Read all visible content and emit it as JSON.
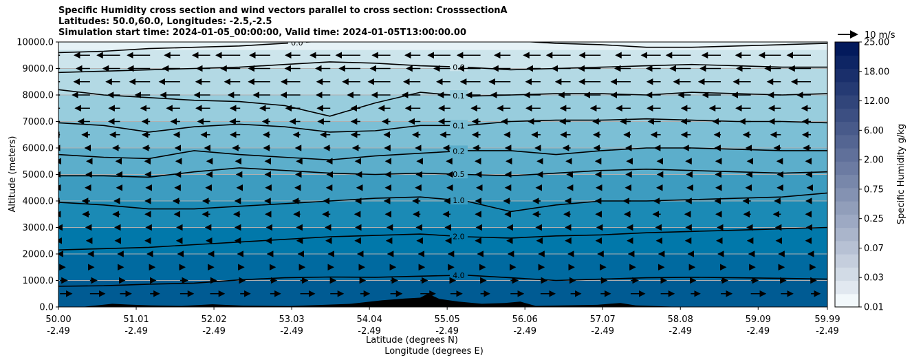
{
  "chart_data": {
    "type": "heatmap",
    "title_lines": [
      "Specific Humidity cross section and wind vectors parallel to cross section: CrosssectionA",
      "Latitudes: 50.0,60.0, Longitudes: -2.5,-2.5",
      "Simulation start time: 2024-01-05_00:00:00, Valid time: 2024-01-05T13:00:00.00"
    ],
    "ylabel": "Altitude (meters)",
    "xlabel_lat": "Latitude (degrees N)",
    "xlabel_lon": "Longitude (degrees E)",
    "ylim": [
      0,
      10000
    ],
    "y_ticks": [
      "0.0",
      "1000.0",
      "2000.0",
      "3000.0",
      "4000.0",
      "5000.0",
      "6000.0",
      "7000.0",
      "8000.0",
      "9000.0",
      "10000.0"
    ],
    "y_tick_values": [
      0,
      1000,
      2000,
      3000,
      4000,
      5000,
      6000,
      7000,
      8000,
      9000,
      10000
    ],
    "x_ticks_lat": [
      "50.00",
      "51.01",
      "52.02",
      "53.03",
      "54.04",
      "55.05",
      "56.06",
      "57.07",
      "58.08",
      "59.09",
      "59.99"
    ],
    "x_ticks_lon": [
      "-2.49",
      "-2.49",
      "-2.49",
      "-2.49",
      "-2.49",
      "-2.49",
      "-2.49",
      "-2.49",
      "-2.49",
      "-2.49",
      "-2.49"
    ],
    "x_tick_values": [
      50.0,
      51.01,
      52.02,
      53.03,
      54.04,
      55.05,
      56.06,
      57.07,
      58.08,
      59.09,
      59.99
    ],
    "xlim": [
      50.0,
      59.99
    ],
    "colorbar": {
      "label": "Specific Humidity g/kg",
      "ticks": [
        "0.01",
        "0.03",
        "0.07",
        "0.25",
        "0.75",
        "2.00",
        "6.00",
        "12.00",
        "18.00",
        "25.00"
      ],
      "levels": 20,
      "color_low": "#f2f8fb",
      "color_high": "#031a5c"
    },
    "humidity_bands": [
      {
        "alt": 0,
        "color": "#005b93"
      },
      {
        "alt": 1000,
        "color": "#006aa0"
      },
      {
        "alt": 2000,
        "color": "#0178aa"
      },
      {
        "alt": 3000,
        "color": "#1b8ab5"
      },
      {
        "alt": 4000,
        "color": "#3d9cc0"
      },
      {
        "alt": 5000,
        "color": "#5caecb"
      },
      {
        "alt": 6000,
        "color": "#7cbfd5"
      },
      {
        "alt": 7000,
        "color": "#98cddd"
      },
      {
        "alt": 8000,
        "color": "#b3d9e4"
      },
      {
        "alt": 9000,
        "color": "#cde5ec"
      },
      {
        "alt": 9700,
        "color": "#e6f2f6"
      }
    ],
    "contours": [
      {
        "label": "4.0",
        "alt": [
          780,
          800,
          860,
          900,
          1020,
          1100,
          1130,
          1120,
          1160,
          1200,
          1100,
          1000,
          1050,
          1100,
          1120,
          1100,
          1080,
          1050
        ],
        "label_at": 55.2
      },
      {
        "label": "2.0",
        "alt": [
          2150,
          2200,
          2250,
          2350,
          2450,
          2550,
          2650,
          2700,
          2750,
          2650,
          2600,
          2680,
          2720,
          2800,
          2850,
          2900,
          2950,
          3000
        ],
        "label_at": 55.2
      },
      {
        "label": "1.0",
        "alt": [
          3950,
          3850,
          3700,
          3700,
          3800,
          3900,
          4000,
          4100,
          4150,
          4000,
          3600,
          3850,
          4000,
          4000,
          4050,
          4100,
          4150,
          4300
        ],
        "label_at": 55.2
      },
      {
        "label": "0.5",
        "alt": [
          4950,
          4950,
          4900,
          5100,
          5250,
          5150,
          5050,
          5000,
          5050,
          5000,
          4950,
          5050,
          5150,
          5200,
          5150,
          5100,
          5050,
          5100
        ],
        "label_at": 55.2
      },
      {
        "label": "0.2",
        "alt": [
          5750,
          5650,
          5600,
          5900,
          5750,
          5650,
          5550,
          5700,
          5800,
          5900,
          5900,
          5750,
          5900,
          6000,
          6000,
          5950,
          5900,
          5900
        ],
        "label_at": 55.2
      },
      {
        "label": "0.1",
        "alt": [
          6950,
          6850,
          6600,
          6800,
          6900,
          6800,
          6600,
          6650,
          6850,
          6850,
          7000,
          7050,
          7050,
          7100,
          7050,
          7000,
          7000,
          6950
        ],
        "label_at": 55.2
      },
      {
        "label": "0.1",
        "alt": [
          8200,
          8000,
          7900,
          7800,
          7750,
          7600,
          7200,
          7700,
          8100,
          7950,
          8000,
          8050,
          8050,
          8000,
          8100,
          8050,
          8000,
          8050
        ],
        "label_at": 55.2
      },
      {
        "label": "0.0",
        "alt": [
          8850,
          8900,
          8950,
          9000,
          9050,
          9150,
          9250,
          9200,
          9100,
          9050,
          8950,
          9000,
          9050,
          9100,
          9150,
          9100,
          9050,
          9050
        ],
        "label_at": 55.2
      },
      {
        "label": "0.0",
        "alt": [
          9600,
          9650,
          9750,
          9800,
          9850,
          9950,
          10050,
          10050,
          10050,
          10050,
          10050,
          9950,
          9900,
          9800,
          9800,
          9850,
          9900,
          9950
        ],
        "label_at": 53.1
      }
    ],
    "wind_reference": {
      "label": "10 m/s",
      "speed": 10
    },
    "wind_levels": [
      500,
      1000,
      1500,
      2000,
      2500,
      3000,
      3500,
      4000,
      4500,
      5000,
      5500,
      6000,
      6500,
      7000,
      7500,
      8000,
      8500,
      9000,
      9500
    ],
    "wind_columns": 26,
    "wind_u_by_level": [
      6,
      3,
      2,
      -1,
      -2,
      -2,
      -3,
      -3,
      -2,
      -2,
      -2,
      -3,
      -4,
      -5,
      -6,
      -8,
      -9,
      -9,
      -10
    ],
    "terrain": {
      "max_alt": 500
    }
  }
}
